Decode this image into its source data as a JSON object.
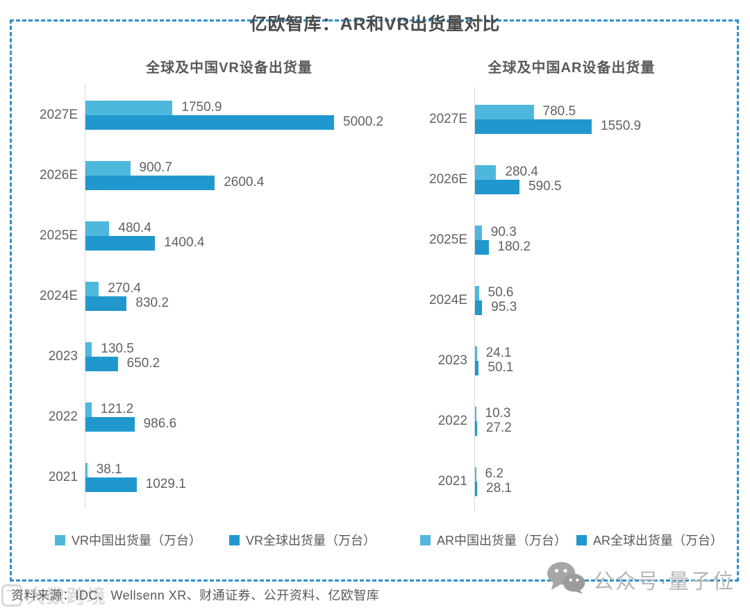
{
  "page_title": "亿欧智库：AR和VR出货量对比",
  "colors": {
    "china_series_blue": "#4EB8DC",
    "global_series_blue": "#2098CE",
    "border_blue": "#2E8FC8",
    "axis_gray": "#d8d8d8",
    "text_gray": "#595959"
  },
  "chart_data": {
    "type": "bar",
    "orientation": "horizontal",
    "unit": "万台",
    "charts": [
      {
        "title": "全球及中国VR设备出货量",
        "categories": [
          "2027E",
          "2026E",
          "2025E",
          "2024E",
          "2023",
          "2022",
          "2021"
        ],
        "series": [
          {
            "name": "VR中国出货量（万台）",
            "color": "#4EB8DC",
            "values": [
              1750.9,
              900.7,
              480.4,
              270.4,
              130.5,
              121.2,
              38.1
            ]
          },
          {
            "name": "VR全球出货量（万台）",
            "color": "#2098CE",
            "values": [
              5000.2,
              2600.4,
              1400.4,
              830.2,
              650.2,
              986.6,
              1029.1
            ]
          }
        ],
        "xlim": [
          0,
          5000
        ],
        "value_labels": true,
        "legend_position": "bottom",
        "grid": false
      },
      {
        "title": "全球及中国AR设备出货量",
        "categories": [
          "2027E",
          "2026E",
          "2025E",
          "2024E",
          "2023",
          "2022",
          "2021"
        ],
        "series": [
          {
            "name": "AR中国出货量（万台）",
            "color": "#4EB8DC",
            "values": [
              780.5,
              280.4,
              90.3,
              50.6,
              24.1,
              10.3,
              6.2
            ]
          },
          {
            "name": "AR全球出货量（万台）",
            "color": "#2098CE",
            "values": [
              1550.9,
              590.5,
              180.2,
              95.3,
              50.1,
              27.2,
              28.1
            ]
          }
        ],
        "xlim": [
          0,
          3400
        ],
        "value_labels": true,
        "legend_position": "bottom",
        "grid": false
      }
    ]
  },
  "source_note": "资料来源：IDC、Wellsenn XR、财通证券、公开资料、亿欧智库",
  "watermark": {
    "text": "大数跨境",
    "icon_letter": "乛"
  },
  "badge": {
    "text": "公众号·量子位",
    "icon": "wechat-icon"
  }
}
